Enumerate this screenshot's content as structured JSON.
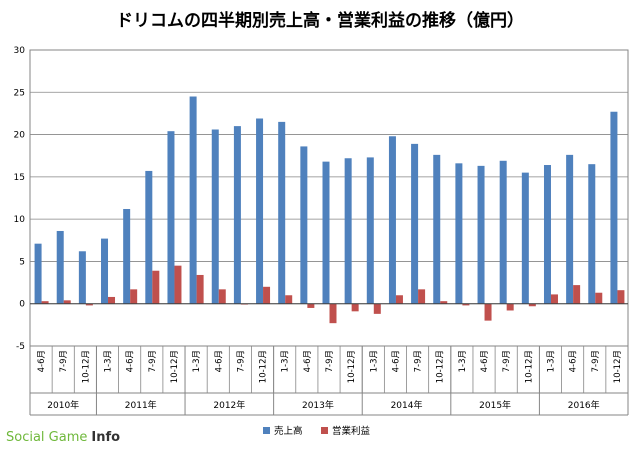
{
  "chart_data": {
    "type": "bar",
    "title": "ドリコムの四半期別売上高・営業利益の推移（億円）",
    "categories": [
      "4-6月",
      "7-9月",
      "10-12月",
      "1-3月",
      "4-6月",
      "7-9月",
      "10-12月",
      "1-3月",
      "4-6月",
      "7-9月",
      "10-12月",
      "1-3月",
      "4-6月",
      "7-9月",
      "10-12月",
      "1-3月",
      "4-6月",
      "7-9月",
      "10-12月",
      "1-3月",
      "4-6月",
      "7-9月",
      "10-12月",
      "1-3月",
      "4-6月",
      "7-9月",
      "10-12月"
    ],
    "year_groups": [
      {
        "label": "2010年",
        "count": 3
      },
      {
        "label": "2011年",
        "count": 4
      },
      {
        "label": "2012年",
        "count": 4
      },
      {
        "label": "2013年",
        "count": 4
      },
      {
        "label": "2014年",
        "count": 4
      },
      {
        "label": "2015年",
        "count": 4
      },
      {
        "label": "2016年",
        "count": 4
      }
    ],
    "series": [
      {
        "name": "売上高",
        "color": "#4f81bd",
        "values": [
          7.1,
          8.6,
          6.2,
          7.7,
          11.2,
          15.7,
          20.4,
          24.5,
          20.6,
          21.0,
          21.9,
          21.5,
          18.6,
          16.8,
          17.2,
          17.3,
          19.8,
          18.9,
          17.6,
          16.6,
          16.3,
          16.9,
          15.5,
          16.4,
          17.6,
          16.5,
          22.7
        ]
      },
      {
        "name": "営業利益",
        "color": "#c0504d",
        "values": [
          0.3,
          0.4,
          -0.2,
          0.8,
          1.7,
          3.9,
          4.5,
          3.4,
          1.7,
          -0.1,
          2.0,
          1.0,
          -0.5,
          -2.3,
          -0.9,
          -1.2,
          1.0,
          1.7,
          0.3,
          -0.2,
          -2.0,
          -0.8,
          -0.3,
          1.1,
          2.2,
          1.3,
          1.6
        ]
      }
    ],
    "ylim": [
      -5,
      30
    ],
    "yticks": [
      -5,
      0,
      5,
      10,
      15,
      20,
      25,
      30
    ],
    "grid": true,
    "legend": "bottom"
  },
  "watermark": {
    "social": "Social Game",
    "info": "Info"
  }
}
